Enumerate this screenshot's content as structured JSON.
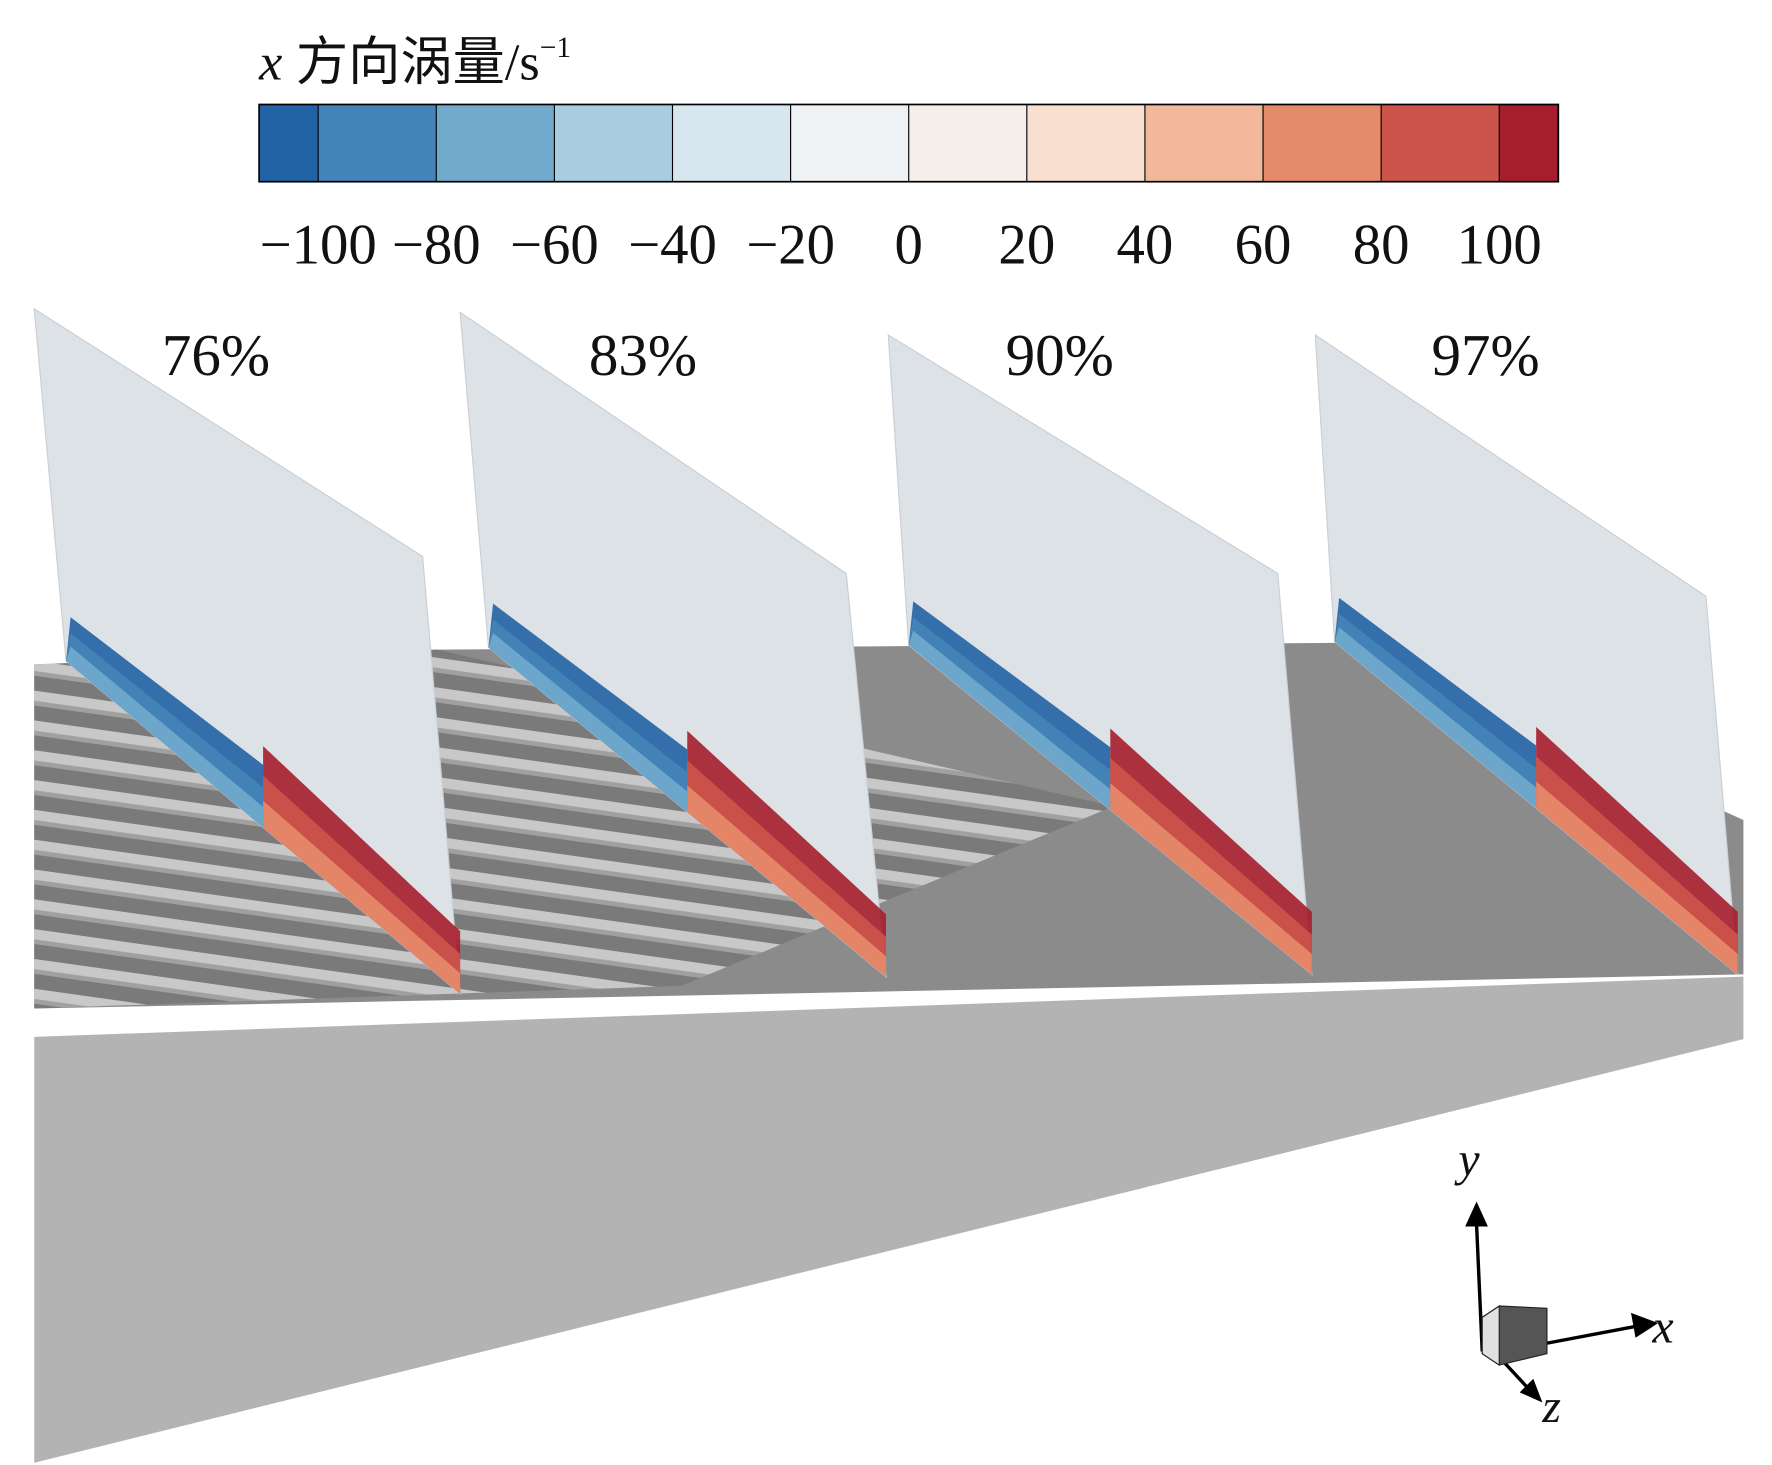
{
  "colorbar": {
    "variable": "x",
    "title": "方向涡量/s",
    "exponent": "−1",
    "lim": [
      -110,
      110
    ],
    "ticks": [
      {
        "value": -100,
        "label": "−100"
      },
      {
        "value": -80,
        "label": "−80"
      },
      {
        "value": -60,
        "label": "−60"
      },
      {
        "value": -40,
        "label": "−40"
      },
      {
        "value": -20,
        "label": "−20"
      },
      0,
      20,
      40,
      60,
      80,
      100
    ],
    "colors": [
      "#2163a5",
      "#4484b8",
      "#72aacd",
      "#a9cde0",
      "#d7e6ef",
      "#eef2f5",
      "#f6eee9",
      "#f9dfd0",
      "#f2b89c",
      "#e58b69",
      "#cd544b",
      "#a61e2b"
    ]
  },
  "planes": [
    {
      "label": "76%"
    },
    {
      "label": "83%"
    },
    {
      "label": "90%"
    },
    {
      "label": "97%"
    }
  ],
  "axes": {
    "x": "x",
    "y": "y",
    "z": "z"
  }
}
